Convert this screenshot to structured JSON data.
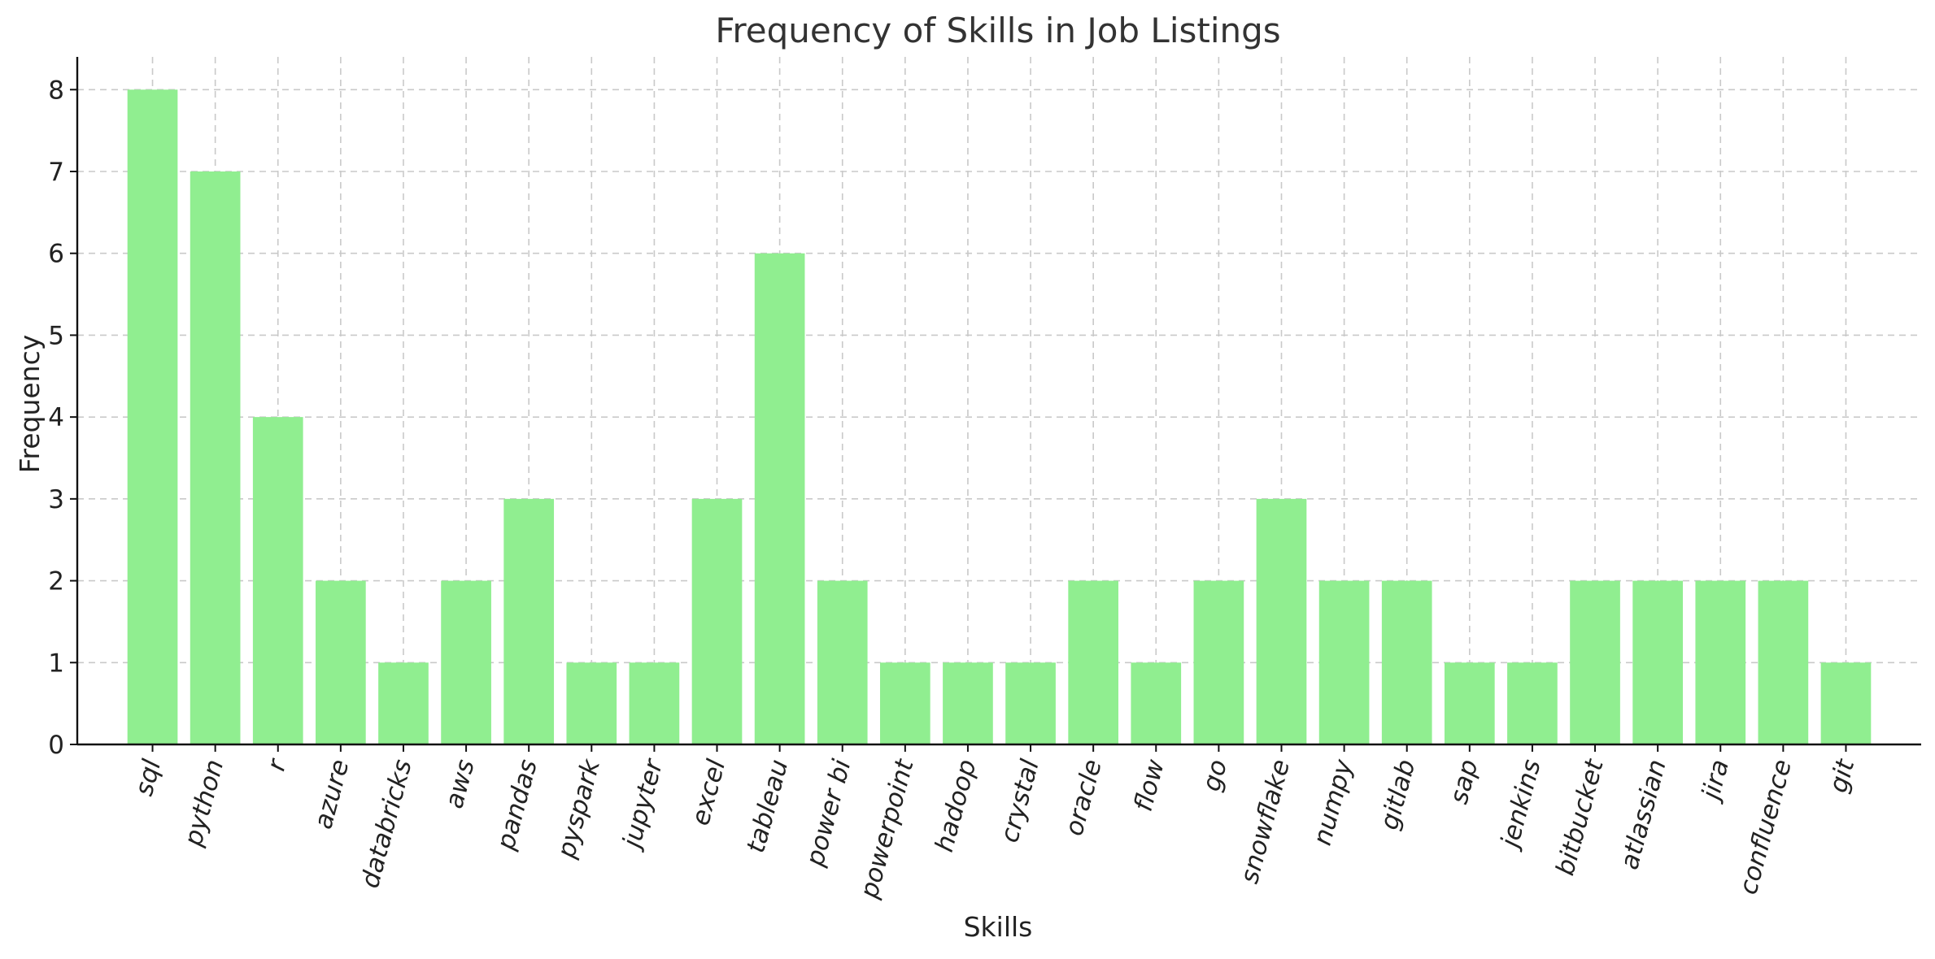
{
  "chart_data": {
    "type": "bar",
    "title": "Frequency of Skills in Job Listings",
    "xlabel": "Skills",
    "ylabel": "Frequency",
    "categories": [
      "sql",
      "python",
      "r",
      "azure",
      "databricks",
      "aws",
      "pandas",
      "pyspark",
      "jupyter",
      "excel",
      "tableau",
      "power bi",
      "powerpoint",
      "hadoop",
      "crystal",
      "oracle",
      "flow",
      "go",
      "snowflake",
      "numpy",
      "gitlab",
      "sap",
      "jenkins",
      "bitbucket",
      "atlassian",
      "jira",
      "confluence",
      "git"
    ],
    "values": [
      8,
      7,
      4,
      2,
      1,
      2,
      3,
      1,
      1,
      3,
      6,
      2,
      1,
      1,
      1,
      2,
      1,
      2,
      3,
      2,
      2,
      1,
      1,
      2,
      2,
      2,
      2,
      1
    ],
    "ylim": [
      0,
      8.4
    ],
    "yticks": [
      "0",
      "1",
      "2",
      "3",
      "4",
      "5",
      "6",
      "7",
      "8"
    ],
    "grid": true,
    "bar_color": "#90ee90",
    "xtick_rotation": 75
  }
}
